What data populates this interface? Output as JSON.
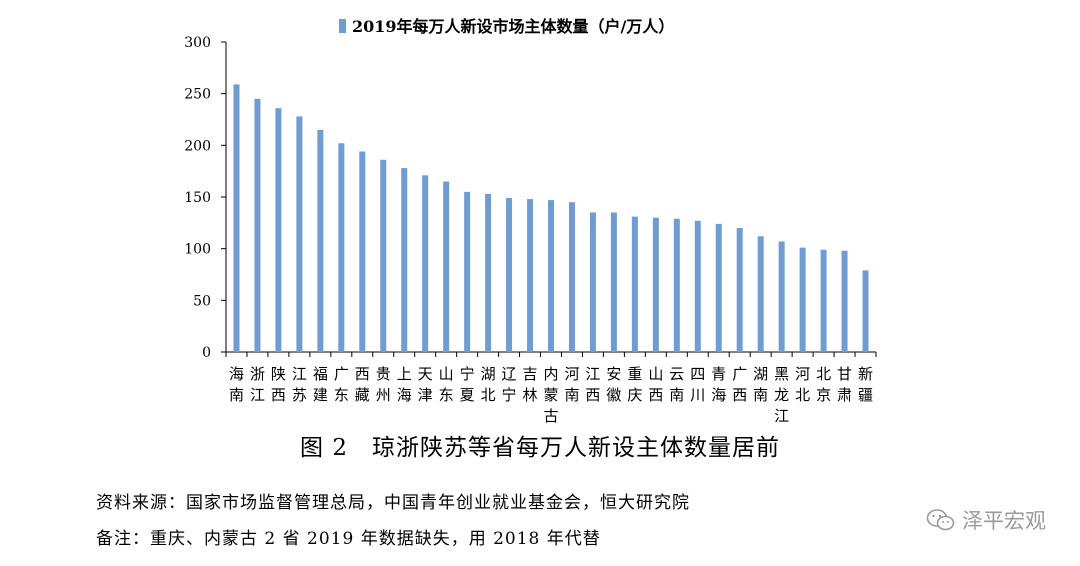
{
  "chart_data": {
    "type": "bar",
    "legend_label": "2019年每万人新设市场主体数量（户/万人）",
    "legend_position": "top",
    "series_color": "#6f9dd1",
    "ylim": [
      0,
      300
    ],
    "yticks": [
      0,
      50,
      100,
      150,
      200,
      250,
      300
    ],
    "grid": false,
    "categories": [
      "海南",
      "浙江",
      "陕西",
      "江苏",
      "福建",
      "广东",
      "西藏",
      "贵州",
      "上海",
      "天津",
      "山东",
      "宁夏",
      "湖北",
      "辽宁",
      "吉林",
      "内蒙古",
      "河南",
      "江西",
      "安徽",
      "重庆",
      "山西",
      "云南",
      "四川",
      "青海",
      "广西",
      "湖南",
      "黑龙江",
      "河北",
      "北京",
      "甘肃",
      "新疆"
    ],
    "values": [
      259,
      245,
      236,
      228,
      215,
      202,
      194,
      186,
      178,
      171,
      165,
      155,
      153,
      149,
      148,
      147,
      145,
      135,
      135,
      131,
      130,
      129,
      127,
      124,
      120,
      112,
      107,
      101,
      99,
      98,
      79
    ]
  },
  "caption": "图 2　琼浙陕苏等省每万人新设主体数量居前",
  "source_note": "资料来源：国家市场监督管理总局，中国青年创业就业基金会，恒大研究院",
  "remark_note": "备注：重庆、内蒙古 2 省 2019 年数据缺失，用 2018 年代替",
  "watermark": "泽平宏观",
  "watermark_icon": "wechat-icon"
}
